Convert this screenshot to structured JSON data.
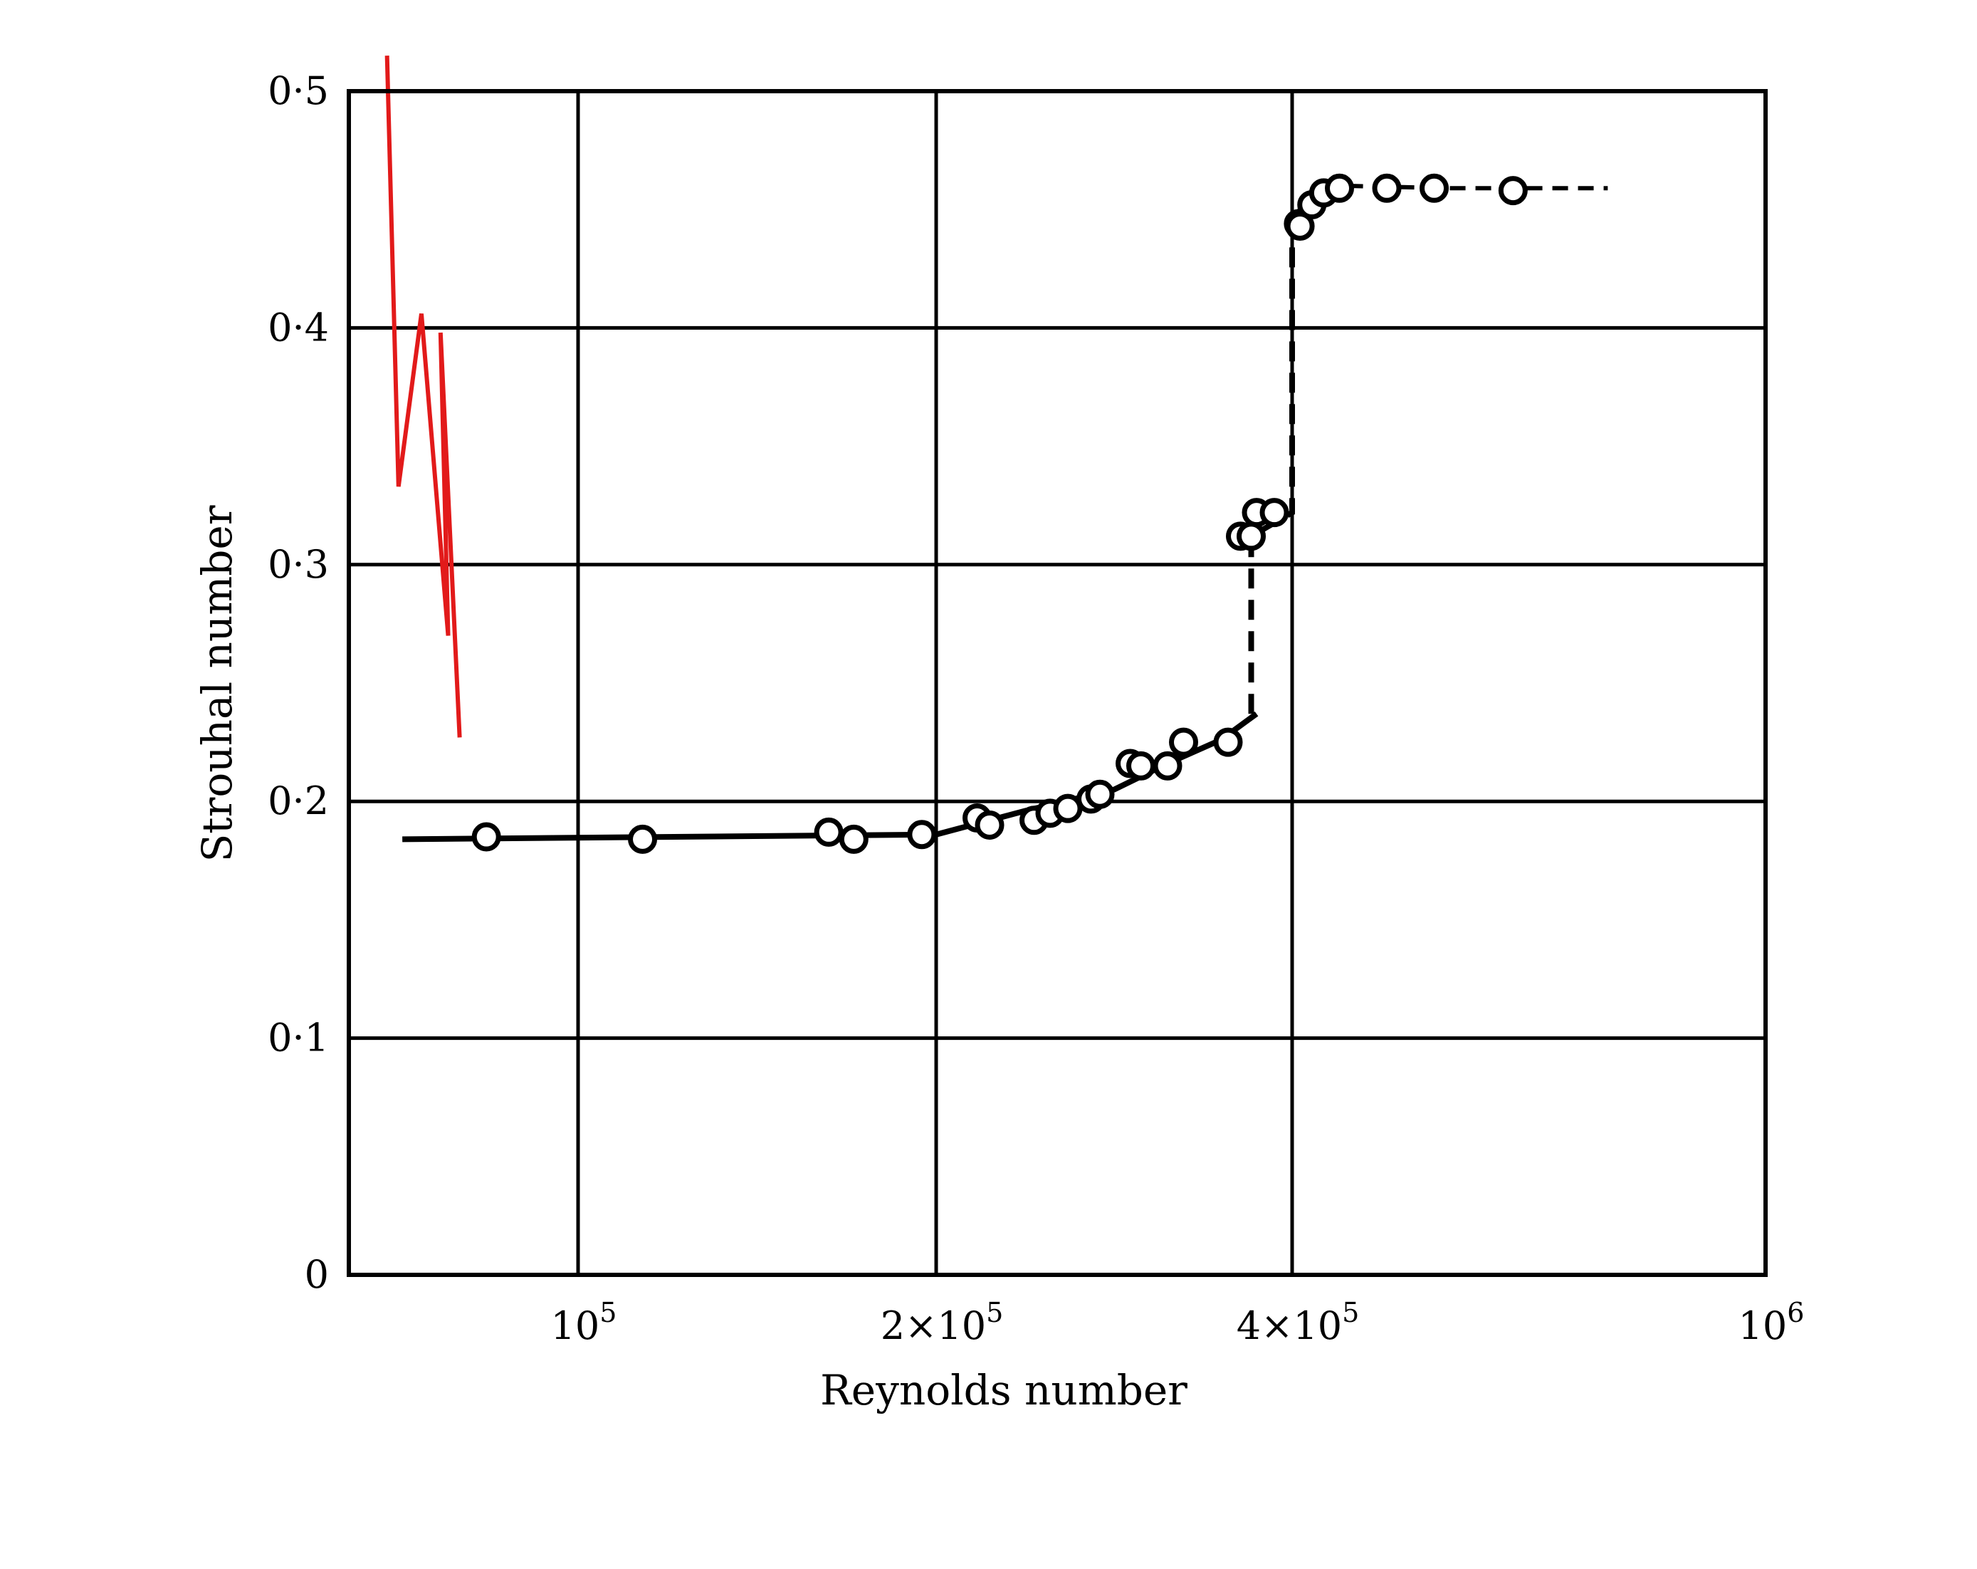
{
  "chart_data": {
    "type": "scatter",
    "xlabel": "Reynolds number",
    "ylabel": "Strouhal number",
    "x_scale": "piecewise (ticks at 10^5, 2×10^5, 4×10^5, 10^6; equally spaced)",
    "xlim": [
      70000,
      1000000
    ],
    "ylim": [
      0,
      0.5
    ],
    "grid": true,
    "x_ticks": [
      {
        "value": 100000,
        "base": "10",
        "exp": "5"
      },
      {
        "value": 200000,
        "base": "2×10",
        "exp": "5"
      },
      {
        "value": 400000,
        "base": "4×10",
        "exp": "5"
      },
      {
        "value": 1000000,
        "base": "10",
        "exp": "6"
      }
    ],
    "y_ticks": [
      {
        "value": 0,
        "label": "0"
      },
      {
        "value": 0.1,
        "label": "0·1"
      },
      {
        "value": 0.2,
        "label": "0·2"
      },
      {
        "value": 0.3,
        "label": "0·3"
      },
      {
        "value": 0.4,
        "label": "0·4"
      },
      {
        "value": 0.5,
        "label": "0·5"
      }
    ],
    "series": [
      {
        "role": "measured points",
        "marker": "open-circle",
        "x": [
          88000,
          118000,
          170000,
          177000,
          196000,
          223000,
          230000,
          255000,
          264000,
          274000,
          287000,
          292000,
          309000,
          315000,
          330000,
          339000,
          364000,
          371000,
          380000,
          377000,
          390000,
          408000,
          410000,
          425000,
          440000,
          460000,
          520000,
          580000,
          680000
        ],
        "y": [
          0.185,
          0.184,
          0.187,
          0.184,
          0.186,
          0.193,
          0.19,
          0.192,
          0.195,
          0.197,
          0.201,
          0.203,
          0.216,
          0.215,
          0.215,
          0.225,
          0.225,
          0.312,
          0.322,
          0.312,
          0.322,
          0.444,
          0.443,
          0.452,
          0.457,
          0.459,
          0.459,
          0.459,
          0.458
        ]
      },
      {
        "role": "fit curve (solid)",
        "style": "solid",
        "x": [
          77000,
          200000,
          250000,
          300000,
          330000,
          360000,
          380000
        ],
        "y": [
          0.184,
          0.186,
          0.196,
          0.205,
          0.216,
          0.226,
          0.237
        ]
      },
      {
        "role": "transition (dashed)",
        "style": "dashed",
        "x": [
          377000,
          377000,
          400000,
          400000
        ],
        "y": [
          0.237,
          0.312,
          0.322,
          0.444
        ]
      },
      {
        "role": "high-Re plateau",
        "style": "solid-then-dashed",
        "x": [
          400000,
          410000,
          440000,
          470000,
          600000,
          800000
        ],
        "y": [
          0.444,
          0.45,
          0.457,
          0.46,
          0.459,
          0.459
        ]
      },
      {
        "role": "overlay trace",
        "style": "solid",
        "color": "#e21a1a",
        "x": [
          75000,
          76500,
          79500,
          83000,
          82000,
          84500
        ],
        "y": [
          0.515,
          0.333,
          0.406,
          0.27,
          0.398,
          0.227
        ]
      }
    ]
  }
}
